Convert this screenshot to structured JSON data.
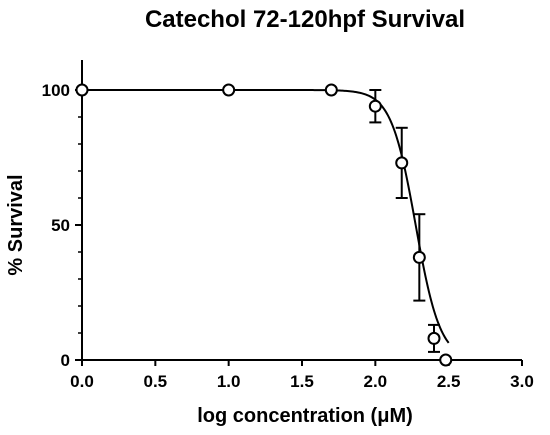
{
  "chart_data": {
    "type": "scatter",
    "title": "Catechol 72-120hpf Survival",
    "xlabel": "log concentration (μM)",
    "ylabel": "% Survival",
    "xlim": [
      0.0,
      3.0
    ],
    "ylim": [
      0,
      100
    ],
    "xticks": [
      "0.0",
      "0.5",
      "1.0",
      "1.5",
      "2.0",
      "2.5",
      "3.0"
    ],
    "yticks": [
      "0",
      "50",
      "100"
    ],
    "grid": false,
    "legend": "none",
    "series": [
      {
        "points": [
          {
            "x": 0.0,
            "y": 100,
            "err": 0
          },
          {
            "x": 1.0,
            "y": 100,
            "err": 0
          },
          {
            "x": 1.7,
            "y": 100,
            "err": 0
          },
          {
            "x": 2.0,
            "y": 94,
            "err": 6
          },
          {
            "x": 2.18,
            "y": 73,
            "err": 13
          },
          {
            "x": 2.3,
            "y": 38,
            "err": 16
          },
          {
            "x": 2.4,
            "y": 8,
            "err": 5
          },
          {
            "x": 2.48,
            "y": 0,
            "err": 0
          }
        ],
        "fit": {
          "model": "sigmoidal dose-response",
          "top": 100,
          "bottom": 0,
          "logEC50": 2.275,
          "hill_slope": -5.2
        }
      }
    ],
    "colors": {
      "line": "#000000",
      "marker_fill": "#ffffff"
    }
  }
}
